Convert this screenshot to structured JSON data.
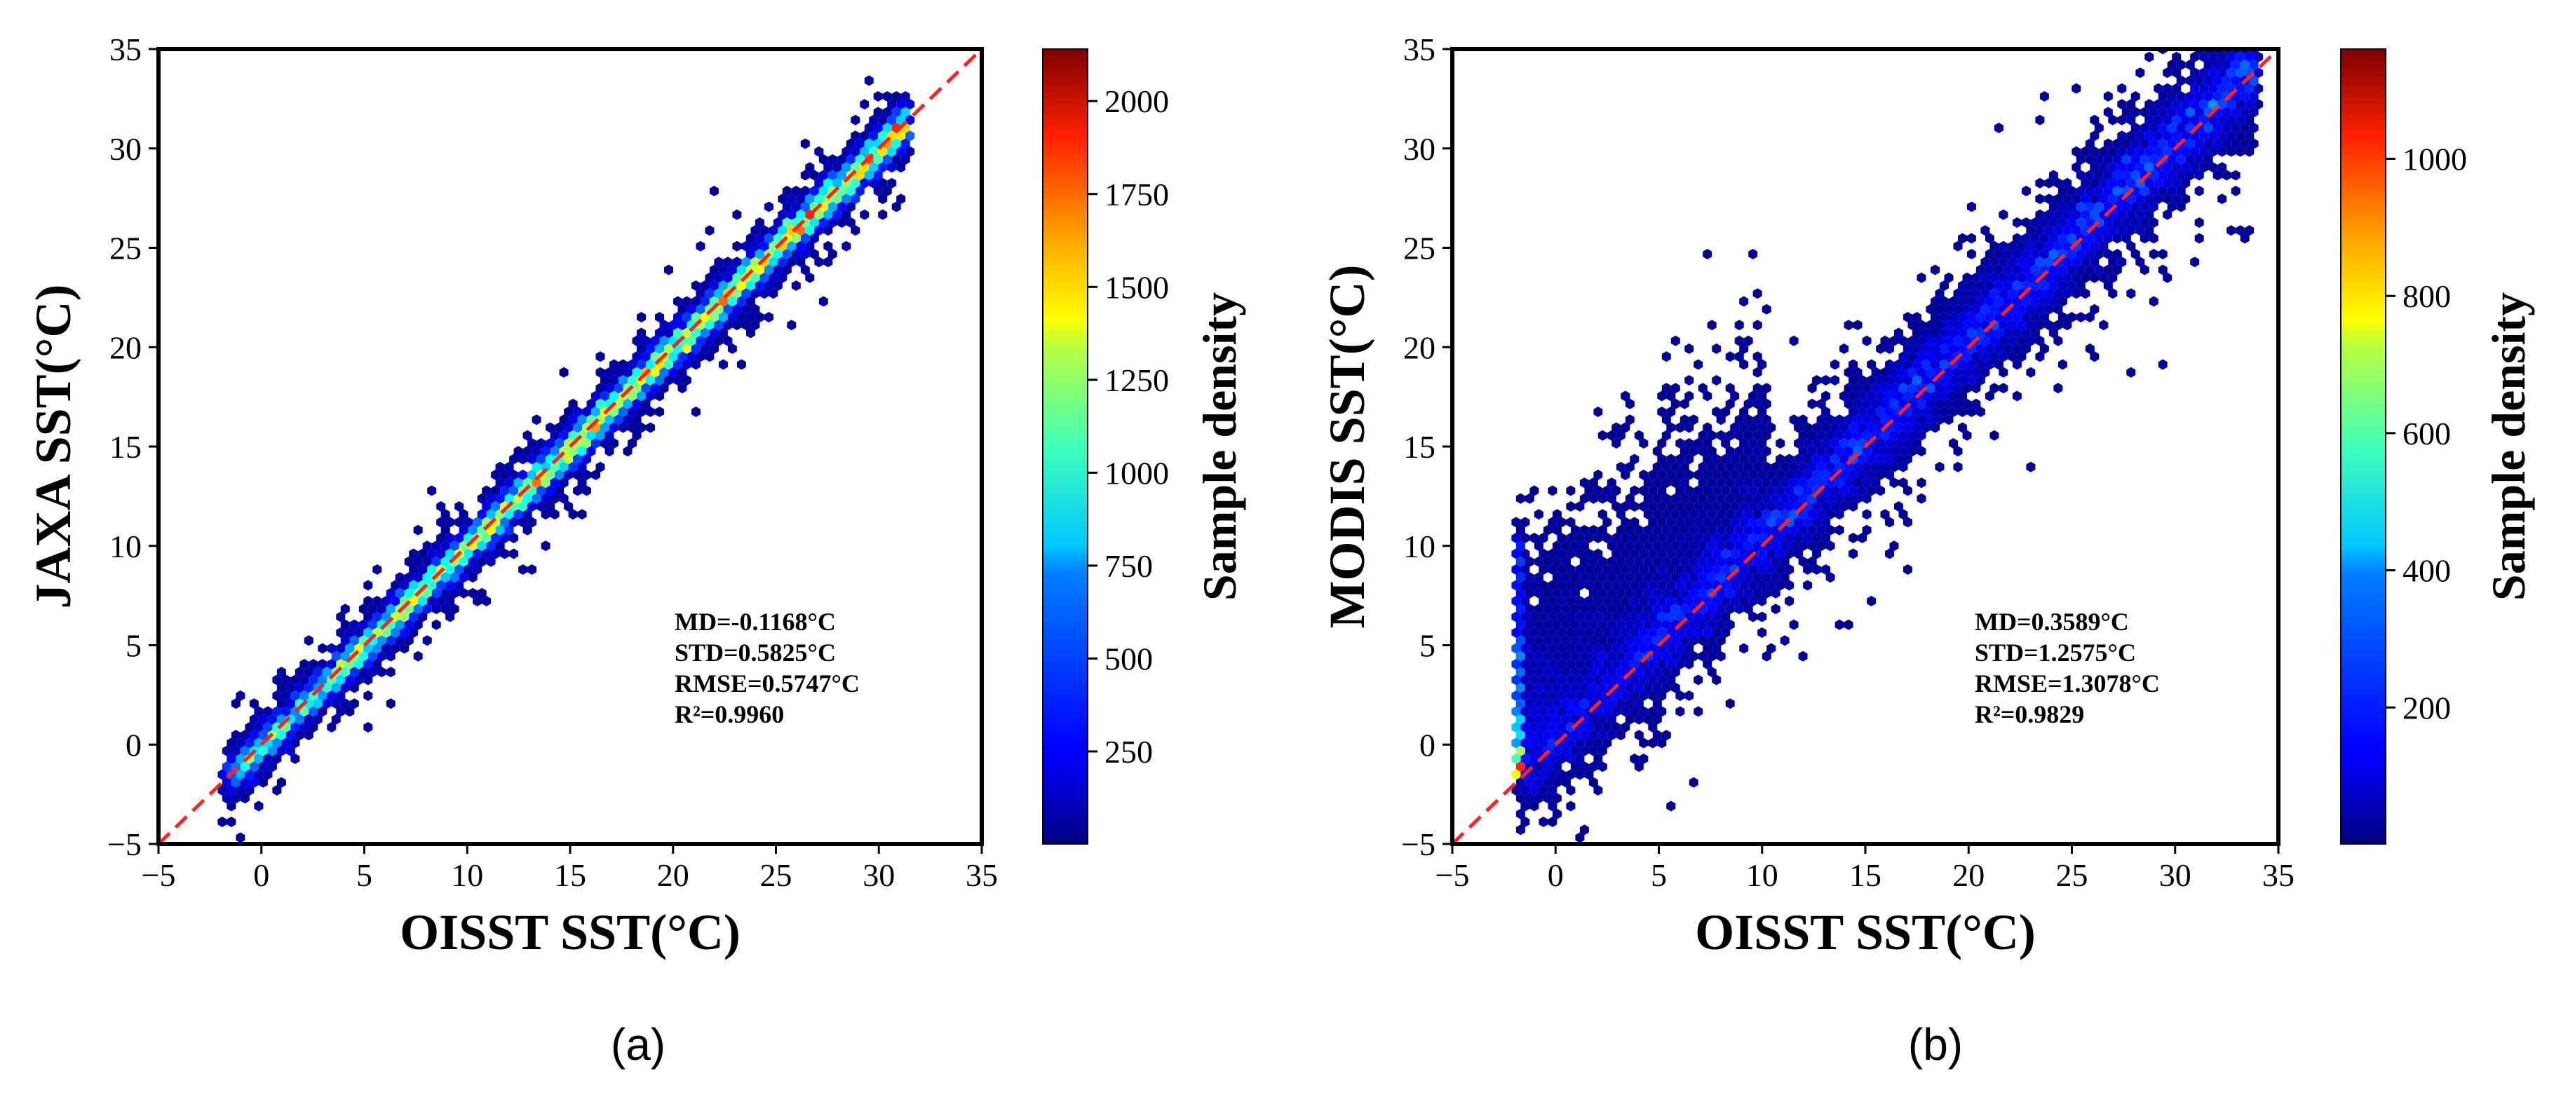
{
  "chart_data": [
    {
      "type": "scatter",
      "subtype": "hexbin-density",
      "panel_label": "(a)",
      "xlabel": "OISST SST(°C)",
      "ylabel": "JAXA SST(°C)",
      "xlim": [
        -5,
        35
      ],
      "ylim": [
        -5,
        35
      ],
      "xticks": [
        -5,
        0,
        5,
        10,
        15,
        20,
        25,
        30,
        35
      ],
      "yticks": [
        -5,
        0,
        5,
        10,
        15,
        20,
        25,
        30,
        35
      ],
      "xtick_labels": [
        "−5",
        "0",
        "5",
        "10",
        "15",
        "20",
        "25",
        "30",
        "35"
      ],
      "ytick_labels": [
        "−5",
        "0",
        "5",
        "10",
        "15",
        "20",
        "25",
        "30",
        "35"
      ],
      "reference_line": {
        "type": "1:1",
        "style": "dashed",
        "color": "#ff2020"
      },
      "stats": [
        "MD=-0.1168°C",
        "STD=0.5825°C",
        "RMSE=0.5747°C",
        "R²=0.9960"
      ],
      "point_cloud": {
        "x_range": [
          -1.8,
          31.5
        ],
        "spread": 0.58,
        "md": -0.1168
      },
      "colorbar": {
        "label": "Sample density",
        "range": [
          1,
          2140
        ],
        "ticks": [
          250,
          500,
          750,
          1000,
          1250,
          1500,
          1750,
          2000
        ],
        "tick_labels": [
          "250",
          "500",
          "750",
          "1000",
          "1250",
          "1500",
          "1750",
          "2000"
        ],
        "colormap": "jet"
      }
    },
    {
      "type": "scatter",
      "subtype": "hexbin-density",
      "panel_label": "(b)",
      "xlabel": "OISST SST(°C)",
      "ylabel": "MODIS SST(°C)",
      "xlim": [
        -5,
        35
      ],
      "ylim": [
        -5,
        35
      ],
      "xticks": [
        -5,
        0,
        5,
        10,
        15,
        20,
        25,
        30,
        35
      ],
      "yticks": [
        -5,
        0,
        5,
        10,
        15,
        20,
        25,
        30,
        35
      ],
      "xtick_labels": [
        "−5",
        "0",
        "5",
        "10",
        "15",
        "20",
        "25",
        "30",
        "35"
      ],
      "ytick_labels": [
        "−5",
        "0",
        "5",
        "10",
        "15",
        "20",
        "25",
        "30",
        "35"
      ],
      "reference_line": {
        "type": "1:1",
        "style": "dashed",
        "color": "#ff2020"
      },
      "stats": [
        "MD=0.3589°C",
        "STD=1.2575°C",
        "RMSE=1.3078°C",
        "R²=0.9829"
      ],
      "point_cloud": {
        "x_range": [
          -1.8,
          34.0
        ],
        "spread": 1.26,
        "md": 0.3589
      },
      "colorbar": {
        "label": "Sample density",
        "range": [
          1,
          1160
        ],
        "ticks": [
          200,
          400,
          600,
          800,
          1000
        ],
        "tick_labels": [
          "200",
          "400",
          "600",
          "800",
          "1000"
        ],
        "colormap": "jet"
      }
    }
  ],
  "colors": {
    "axis": "#000000",
    "reference_line": "#ff2020",
    "background": "#ffffff"
  }
}
